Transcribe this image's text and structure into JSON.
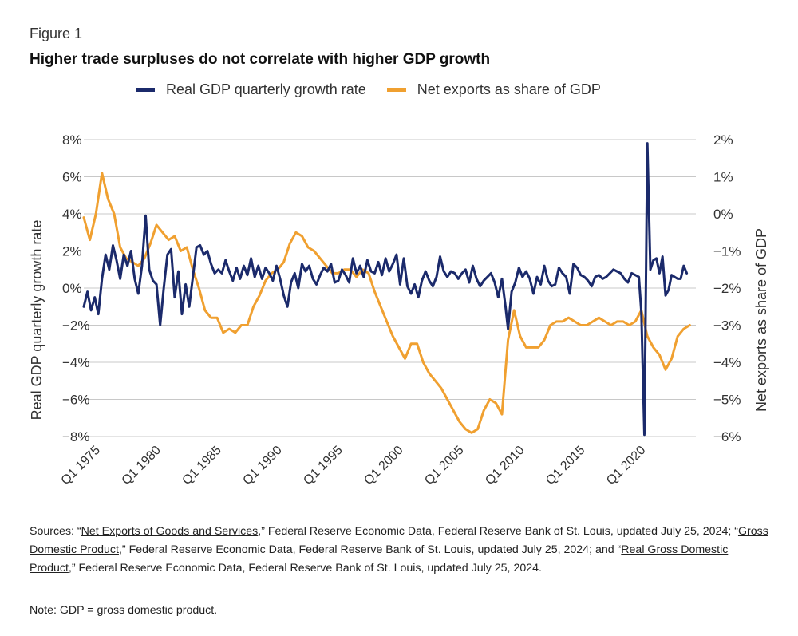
{
  "figure_label": "Figure 1",
  "title": "Higher trade surpluses do not correlate with higher GDP growth",
  "legend": [
    {
      "label": "Real GDP quarterly growth rate",
      "color": "#1b2a6b"
    },
    {
      "label": "Net exports as share of GDP",
      "color": "#f0a030"
    }
  ],
  "colors": {
    "gdp": "#1b2a6b",
    "net_exports": "#f0a030",
    "grid": "#c8c8c8"
  },
  "footer": {
    "prefix": "Sources: “",
    "link1": "Net Exports of Goods and Services",
    "mid1": ",” Federal Reserve Economic Data, Federal Reserve Bank of St. Louis, updated July 25, 2024; “",
    "link2": "Gross Domestic Product",
    "mid2": ",” Federal Reserve Economic Data, Federal Reserve Bank of St. Louis, updated July 25, 2024; and “",
    "link3": "Real Gross Domestic Product",
    "suffix": ",” Federal Reserve Economic Data, Federal Reserve Bank of St. Louis, updated July 25, 2024.",
    "note": "Note: GDP = gross domestic product."
  },
  "chart_data": {
    "type": "line",
    "title": "Higher trade surpluses do not correlate with higher GDP growth",
    "xlabel": "",
    "ylabel_left": "Real GDP quarterly growth rate",
    "ylabel_right": "Net exports as share of GDP",
    "xlim": [
      1974,
      2024.5
    ],
    "ylim_left": [
      -8,
      8
    ],
    "ylim_right": [
      -6,
      2
    ],
    "y_ticks_left": [
      "8%",
      "6%",
      "4%",
      "2%",
      "0%",
      "−2%",
      "−4%",
      "−6%",
      "−8%"
    ],
    "y_ticks_right": [
      "2%",
      "1%",
      "0%",
      "−1%",
      "−2%",
      "−3%",
      "−4%",
      "−5%",
      "−6%"
    ],
    "x_ticks": [
      {
        "label": "Q1 1975",
        "year": 1975
      },
      {
        "label": "Q1 1980",
        "year": 1980
      },
      {
        "label": "Q1 1985",
        "year": 1985
      },
      {
        "label": "Q1 1990",
        "year": 1990
      },
      {
        "label": "Q1 1995",
        "year": 1995
      },
      {
        "label": "Q1 2000",
        "year": 2000
      },
      {
        "label": "Q1 2005",
        "year": 2005
      },
      {
        "label": "Q1 2010",
        "year": 2010
      },
      {
        "label": "Q1 2015",
        "year": 2015
      },
      {
        "label": "Q1 2020",
        "year": 2020
      }
    ],
    "series": [
      {
        "name": "Real GDP quarterly growth rate",
        "axis": "left",
        "points": [
          [
            1974.0,
            -1.0
          ],
          [
            1974.3,
            -0.2
          ],
          [
            1974.6,
            -1.2
          ],
          [
            1974.9,
            -0.5
          ],
          [
            1975.2,
            -1.4
          ],
          [
            1975.5,
            0.5
          ],
          [
            1975.8,
            1.8
          ],
          [
            1976.1,
            1.0
          ],
          [
            1976.4,
            2.3
          ],
          [
            1976.7,
            1.5
          ],
          [
            1977.0,
            0.5
          ],
          [
            1977.3,
            1.8
          ],
          [
            1977.6,
            1.2
          ],
          [
            1977.9,
            2.0
          ],
          [
            1978.2,
            0.5
          ],
          [
            1978.5,
            -0.3
          ],
          [
            1978.8,
            1.2
          ],
          [
            1979.1,
            3.9
          ],
          [
            1979.4,
            1.0
          ],
          [
            1979.7,
            0.4
          ],
          [
            1980.0,
            0.2
          ],
          [
            1980.3,
            -2.0
          ],
          [
            1980.6,
            0.0
          ],
          [
            1980.9,
            1.8
          ],
          [
            1981.2,
            2.1
          ],
          [
            1981.5,
            -0.5
          ],
          [
            1981.8,
            0.9
          ],
          [
            1982.1,
            -1.4
          ],
          [
            1982.4,
            0.2
          ],
          [
            1982.7,
            -1.0
          ],
          [
            1983.0,
            0.6
          ],
          [
            1983.3,
            2.2
          ],
          [
            1983.6,
            2.3
          ],
          [
            1983.9,
            1.8
          ],
          [
            1984.2,
            2.0
          ],
          [
            1984.5,
            1.3
          ],
          [
            1984.8,
            0.8
          ],
          [
            1985.1,
            1.0
          ],
          [
            1985.4,
            0.8
          ],
          [
            1985.7,
            1.5
          ],
          [
            1986.0,
            0.9
          ],
          [
            1986.3,
            0.4
          ],
          [
            1986.6,
            1.1
          ],
          [
            1986.9,
            0.5
          ],
          [
            1987.2,
            1.2
          ],
          [
            1987.5,
            0.7
          ],
          [
            1987.8,
            1.6
          ],
          [
            1988.1,
            0.6
          ],
          [
            1988.4,
            1.2
          ],
          [
            1988.7,
            0.5
          ],
          [
            1989.0,
            1.1
          ],
          [
            1989.3,
            0.8
          ],
          [
            1989.6,
            0.4
          ],
          [
            1989.9,
            1.2
          ],
          [
            1990.2,
            0.5
          ],
          [
            1990.5,
            -0.4
          ],
          [
            1990.8,
            -1.0
          ],
          [
            1991.1,
            0.3
          ],
          [
            1991.4,
            0.8
          ],
          [
            1991.7,
            0.0
          ],
          [
            1992.0,
            1.3
          ],
          [
            1992.3,
            0.9
          ],
          [
            1992.6,
            1.2
          ],
          [
            1992.9,
            0.5
          ],
          [
            1993.2,
            0.2
          ],
          [
            1993.5,
            0.7
          ],
          [
            1993.8,
            1.1
          ],
          [
            1994.1,
            0.9
          ],
          [
            1994.4,
            1.3
          ],
          [
            1994.7,
            0.3
          ],
          [
            1995.0,
            0.4
          ],
          [
            1995.3,
            1.0
          ],
          [
            1995.6,
            0.7
          ],
          [
            1995.9,
            0.3
          ],
          [
            1996.2,
            1.6
          ],
          [
            1996.5,
            0.8
          ],
          [
            1996.8,
            1.2
          ],
          [
            1997.1,
            0.6
          ],
          [
            1997.4,
            1.5
          ],
          [
            1997.7,
            0.9
          ],
          [
            1998.0,
            0.8
          ],
          [
            1998.3,
            1.4
          ],
          [
            1998.6,
            0.7
          ],
          [
            1998.9,
            1.6
          ],
          [
            1999.2,
            0.9
          ],
          [
            1999.5,
            1.3
          ],
          [
            1999.8,
            1.8
          ],
          [
            2000.1,
            0.2
          ],
          [
            2000.4,
            1.6
          ],
          [
            2000.7,
            0.1
          ],
          [
            2001.0,
            -0.3
          ],
          [
            2001.3,
            0.2
          ],
          [
            2001.6,
            -0.5
          ],
          [
            2001.9,
            0.4
          ],
          [
            2002.2,
            0.9
          ],
          [
            2002.5,
            0.4
          ],
          [
            2002.8,
            0.1
          ],
          [
            2003.1,
            0.6
          ],
          [
            2003.4,
            1.7
          ],
          [
            2003.7,
            0.9
          ],
          [
            2004.0,
            0.6
          ],
          [
            2004.3,
            0.9
          ],
          [
            2004.6,
            0.8
          ],
          [
            2004.9,
            0.5
          ],
          [
            2005.2,
            0.8
          ],
          [
            2005.5,
            1.0
          ],
          [
            2005.8,
            0.3
          ],
          [
            2006.1,
            1.2
          ],
          [
            2006.4,
            0.5
          ],
          [
            2006.7,
            0.1
          ],
          [
            2007.0,
            0.4
          ],
          [
            2007.3,
            0.6
          ],
          [
            2007.6,
            0.8
          ],
          [
            2007.9,
            0.3
          ],
          [
            2008.2,
            -0.5
          ],
          [
            2008.5,
            0.5
          ],
          [
            2008.8,
            -1.0
          ],
          [
            2009.0,
            -2.2
          ],
          [
            2009.3,
            -0.2
          ],
          [
            2009.6,
            0.3
          ],
          [
            2009.9,
            1.1
          ],
          [
            2010.2,
            0.6
          ],
          [
            2010.5,
            0.9
          ],
          [
            2010.8,
            0.5
          ],
          [
            2011.1,
            -0.3
          ],
          [
            2011.4,
            0.6
          ],
          [
            2011.7,
            0.2
          ],
          [
            2012.0,
            1.2
          ],
          [
            2012.3,
            0.4
          ],
          [
            2012.6,
            0.1
          ],
          [
            2012.9,
            0.2
          ],
          [
            2013.2,
            1.1
          ],
          [
            2013.5,
            0.8
          ],
          [
            2013.8,
            0.6
          ],
          [
            2014.1,
            -0.3
          ],
          [
            2014.4,
            1.3
          ],
          [
            2014.7,
            1.1
          ],
          [
            2015.0,
            0.7
          ],
          [
            2015.3,
            0.6
          ],
          [
            2015.6,
            0.4
          ],
          [
            2015.9,
            0.1
          ],
          [
            2016.2,
            0.6
          ],
          [
            2016.5,
            0.7
          ],
          [
            2016.8,
            0.5
          ],
          [
            2017.1,
            0.6
          ],
          [
            2017.4,
            0.8
          ],
          [
            2017.7,
            1.0
          ],
          [
            2018.0,
            0.9
          ],
          [
            2018.3,
            0.8
          ],
          [
            2018.6,
            0.5
          ],
          [
            2018.9,
            0.3
          ],
          [
            2019.2,
            0.8
          ],
          [
            2019.5,
            0.7
          ],
          [
            2019.8,
            0.6
          ],
          [
            2020.0,
            -1.3
          ],
          [
            2020.25,
            -7.9
          ],
          [
            2020.5,
            7.8
          ],
          [
            2020.75,
            1.0
          ],
          [
            2021.0,
            1.5
          ],
          [
            2021.25,
            1.6
          ],
          [
            2021.5,
            0.8
          ],
          [
            2021.75,
            1.7
          ],
          [
            2022.0,
            -0.4
          ],
          [
            2022.25,
            -0.1
          ],
          [
            2022.5,
            0.7
          ],
          [
            2022.75,
            0.6
          ],
          [
            2023.0,
            0.5
          ],
          [
            2023.25,
            0.5
          ],
          [
            2023.5,
            1.2
          ],
          [
            2023.75,
            0.8
          ]
        ]
      },
      {
        "name": "Net exports as share of GDP",
        "axis": "right",
        "points": [
          [
            1974.0,
            -0.1
          ],
          [
            1974.5,
            -0.7
          ],
          [
            1975.0,
            0.0
          ],
          [
            1975.5,
            1.1
          ],
          [
            1976.0,
            0.4
          ],
          [
            1976.5,
            0.0
          ],
          [
            1977.0,
            -0.9
          ],
          [
            1977.5,
            -1.2
          ],
          [
            1978.0,
            -1.3
          ],
          [
            1978.5,
            -1.4
          ],
          [
            1979.0,
            -1.2
          ],
          [
            1979.5,
            -0.8
          ],
          [
            1980.0,
            -0.3
          ],
          [
            1980.5,
            -0.5
          ],
          [
            1981.0,
            -0.7
          ],
          [
            1981.5,
            -0.6
          ],
          [
            1982.0,
            -1.0
          ],
          [
            1982.5,
            -0.9
          ],
          [
            1983.0,
            -1.5
          ],
          [
            1983.5,
            -2.0
          ],
          [
            1984.0,
            -2.6
          ],
          [
            1984.5,
            -2.8
          ],
          [
            1985.0,
            -2.8
          ],
          [
            1985.5,
            -3.2
          ],
          [
            1986.0,
            -3.1
          ],
          [
            1986.5,
            -3.2
          ],
          [
            1987.0,
            -3.0
          ],
          [
            1987.5,
            -3.0
          ],
          [
            1988.0,
            -2.5
          ],
          [
            1988.5,
            -2.2
          ],
          [
            1989.0,
            -1.8
          ],
          [
            1989.5,
            -1.6
          ],
          [
            1990.0,
            -1.5
          ],
          [
            1990.5,
            -1.3
          ],
          [
            1991.0,
            -0.8
          ],
          [
            1991.5,
            -0.5
          ],
          [
            1992.0,
            -0.6
          ],
          [
            1992.5,
            -0.9
          ],
          [
            1993.0,
            -1.0
          ],
          [
            1993.5,
            -1.2
          ],
          [
            1994.0,
            -1.4
          ],
          [
            1994.5,
            -1.6
          ],
          [
            1995.0,
            -1.6
          ],
          [
            1995.5,
            -1.5
          ],
          [
            1996.0,
            -1.5
          ],
          [
            1996.5,
            -1.7
          ],
          [
            1997.0,
            -1.5
          ],
          [
            1997.5,
            -1.6
          ],
          [
            1998.0,
            -2.1
          ],
          [
            1998.5,
            -2.5
          ],
          [
            1999.0,
            -2.9
          ],
          [
            1999.5,
            -3.3
          ],
          [
            2000.0,
            -3.6
          ],
          [
            2000.5,
            -3.9
          ],
          [
            2001.0,
            -3.5
          ],
          [
            2001.5,
            -3.5
          ],
          [
            2002.0,
            -4.0
          ],
          [
            2002.5,
            -4.3
          ],
          [
            2003.0,
            -4.5
          ],
          [
            2003.5,
            -4.7
          ],
          [
            2004.0,
            -5.0
          ],
          [
            2004.5,
            -5.3
          ],
          [
            2005.0,
            -5.6
          ],
          [
            2005.5,
            -5.8
          ],
          [
            2006.0,
            -5.9
          ],
          [
            2006.5,
            -5.8
          ],
          [
            2007.0,
            -5.3
          ],
          [
            2007.5,
            -5.0
          ],
          [
            2008.0,
            -5.1
          ],
          [
            2008.5,
            -5.4
          ],
          [
            2009.0,
            -3.4
          ],
          [
            2009.5,
            -2.6
          ],
          [
            2010.0,
            -3.3
          ],
          [
            2010.5,
            -3.6
          ],
          [
            2011.0,
            -3.6
          ],
          [
            2011.5,
            -3.6
          ],
          [
            2012.0,
            -3.4
          ],
          [
            2012.5,
            -3.0
          ],
          [
            2013.0,
            -2.9
          ],
          [
            2013.5,
            -2.9
          ],
          [
            2014.0,
            -2.8
          ],
          [
            2014.5,
            -2.9
          ],
          [
            2015.0,
            -3.0
          ],
          [
            2015.5,
            -3.0
          ],
          [
            2016.0,
            -2.9
          ],
          [
            2016.5,
            -2.8
          ],
          [
            2017.0,
            -2.9
          ],
          [
            2017.5,
            -3.0
          ],
          [
            2018.0,
            -2.9
          ],
          [
            2018.5,
            -2.9
          ],
          [
            2019.0,
            -3.0
          ],
          [
            2019.5,
            -2.9
          ],
          [
            2020.0,
            -2.6
          ],
          [
            2020.5,
            -3.3
          ],
          [
            2021.0,
            -3.6
          ],
          [
            2021.5,
            -3.8
          ],
          [
            2022.0,
            -4.2
          ],
          [
            2022.5,
            -3.9
          ],
          [
            2023.0,
            -3.3
          ],
          [
            2023.5,
            -3.1
          ],
          [
            2024.0,
            -3.0
          ]
        ]
      }
    ]
  }
}
